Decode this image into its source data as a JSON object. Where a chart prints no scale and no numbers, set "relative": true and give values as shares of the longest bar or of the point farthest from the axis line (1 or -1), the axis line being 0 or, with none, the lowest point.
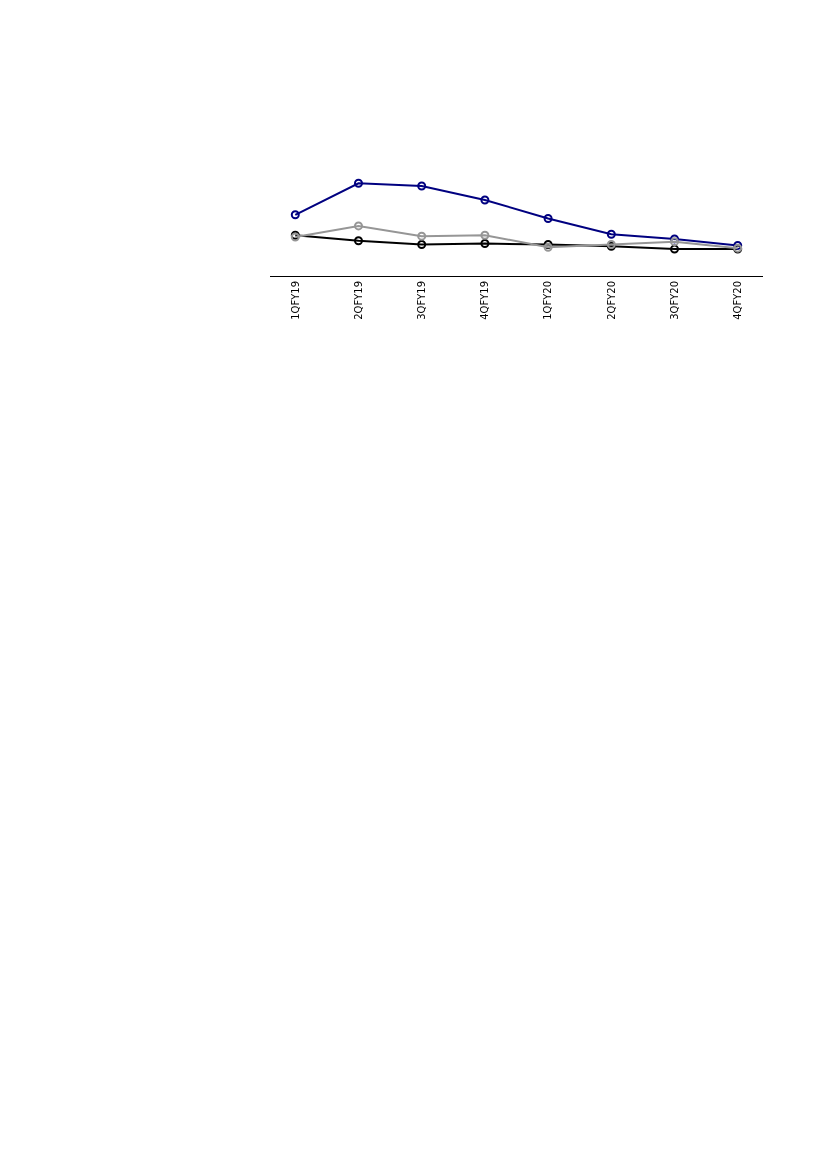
{
  "chart_data": {
    "type": "line",
    "relative": true,
    "categories": [
      "1QFY19",
      "2QFY19",
      "3QFY19",
      "4QFY19",
      "1QFY20",
      "2QFY20",
      "3QFY20",
      "4QFY20"
    ],
    "series": [
      {
        "color": "#000000",
        "values": [
          0.44,
          0.38,
          0.34,
          0.35,
          0.34,
          0.32,
          0.29,
          0.29
        ]
      },
      {
        "color": "#000080",
        "values": [
          0.66,
          1.0,
          0.97,
          0.82,
          0.62,
          0.45,
          0.4,
          0.33
        ]
      },
      {
        "color": "#969696",
        "values": [
          0.42,
          0.54,
          0.43,
          0.44,
          0.31,
          0.34,
          0.37,
          0.3
        ]
      }
    ],
    "marker": "circle",
    "line_style": "solid"
  }
}
